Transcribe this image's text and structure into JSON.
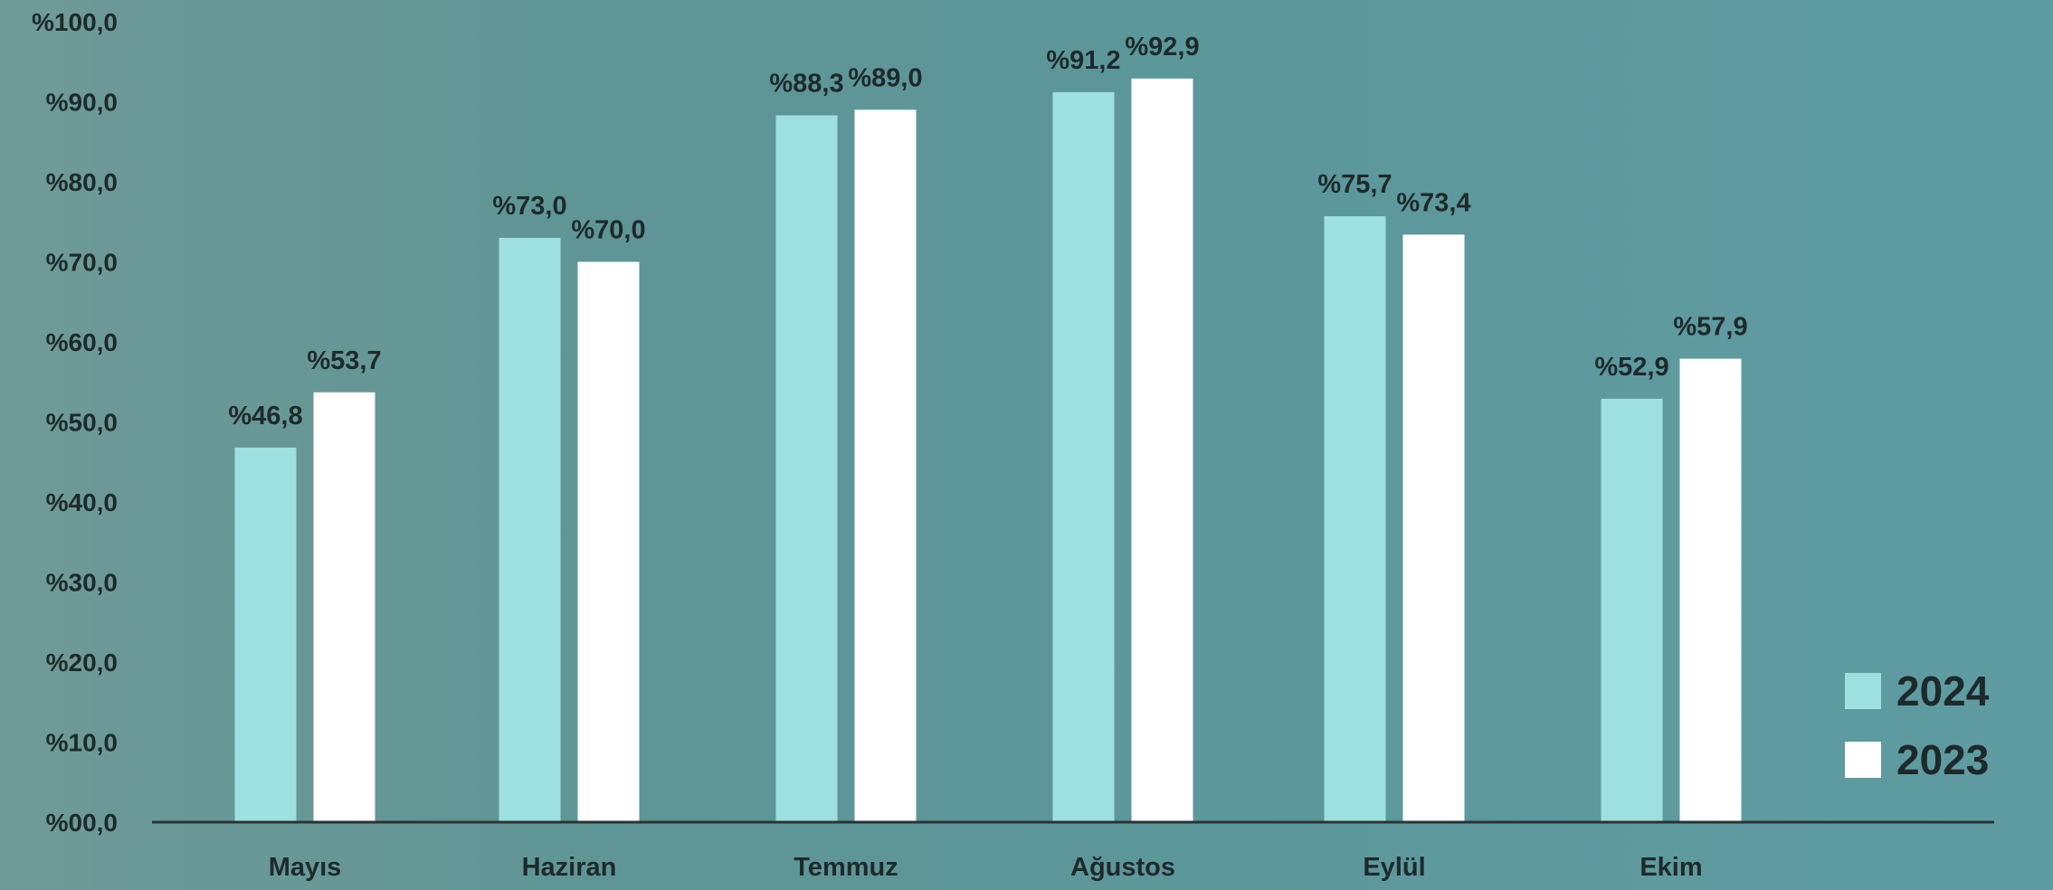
{
  "chart_data": {
    "type": "bar",
    "categories": [
      "Mayıs",
      "Haziran",
      "Temmuz",
      "Ağustos",
      "Eylül",
      "Ekim"
    ],
    "series": [
      {
        "name": "2024",
        "color": "#9ee0df",
        "values": [
          46.8,
          73.0,
          88.3,
          91.2,
          75.7,
          52.9
        ],
        "labels": [
          "%46,8",
          "%73,0",
          "%88,3",
          "%91,2",
          "%75,7",
          "%52,9"
        ]
      },
      {
        "name": "2023",
        "color": "#ffffff",
        "values": [
          53.7,
          70.0,
          89.0,
          92.9,
          73.4,
          57.9
        ],
        "labels": [
          "%53,7",
          "%70,0",
          "%89,0",
          "%92,9",
          "%73,4",
          "%57,9"
        ]
      }
    ],
    "yticks": [
      0,
      10,
      20,
      30,
      40,
      50,
      60,
      70,
      80,
      90,
      100
    ],
    "ytick_labels": [
      "%00,0",
      "%10,0",
      "%20,0",
      "%30,0",
      "%40,0",
      "%50,0",
      "%60,0",
      "%70,0",
      "%80,0",
      "%90,0",
      "%100,0"
    ],
    "ylim": [
      0,
      100
    ],
    "grid": false,
    "legend_position": "bottom-right",
    "title": "",
    "xlabel": "",
    "ylabel": ""
  }
}
